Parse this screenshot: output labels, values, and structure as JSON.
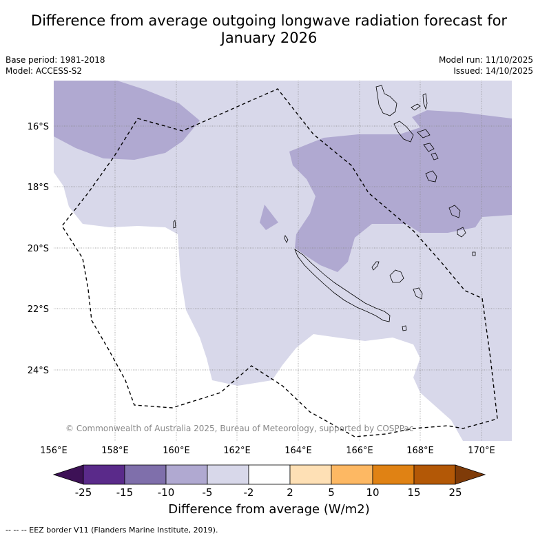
{
  "title_line1": "Difference from average outgoing longwave radiation forecast for",
  "title_line2": "January 2026",
  "base_period": "Base period: 1981-2018",
  "model": "Model: ACCESS-S2",
  "model_run": "Model run: 11/10/2025",
  "issued": "Issued: 14/10/2025",
  "copyright": "© Commonwealth of Australia 2025, Bureau of Meteorology, supported by COSPPac",
  "lat_labels": [
    "16°S",
    "18°S",
    "20°S",
    "22°S",
    "24°S"
  ],
  "lon_labels": [
    "156°E",
    "158°E",
    "160°E",
    "162°E",
    "164°E",
    "166°E",
    "168°E",
    "170°E"
  ],
  "colorbar": {
    "title": "Difference from average (W/m2)",
    "tick_labels": [
      "-25",
      "-15",
      "-10",
      "-5",
      "-2",
      "2",
      "5",
      "10",
      "15",
      "25"
    ],
    "colors": [
      "#3d1156",
      "#5a2a8a",
      "#7f6fab",
      "#b0a9d1",
      "#d8d8ea",
      "#ffffff",
      "#fee0b5",
      "#fdb863",
      "#e08214",
      "#b35806",
      "#7f3b08"
    ]
  },
  "footer": "--  --  -- EEZ border V11 (Flanders Marine Institute, 2019)."
}
